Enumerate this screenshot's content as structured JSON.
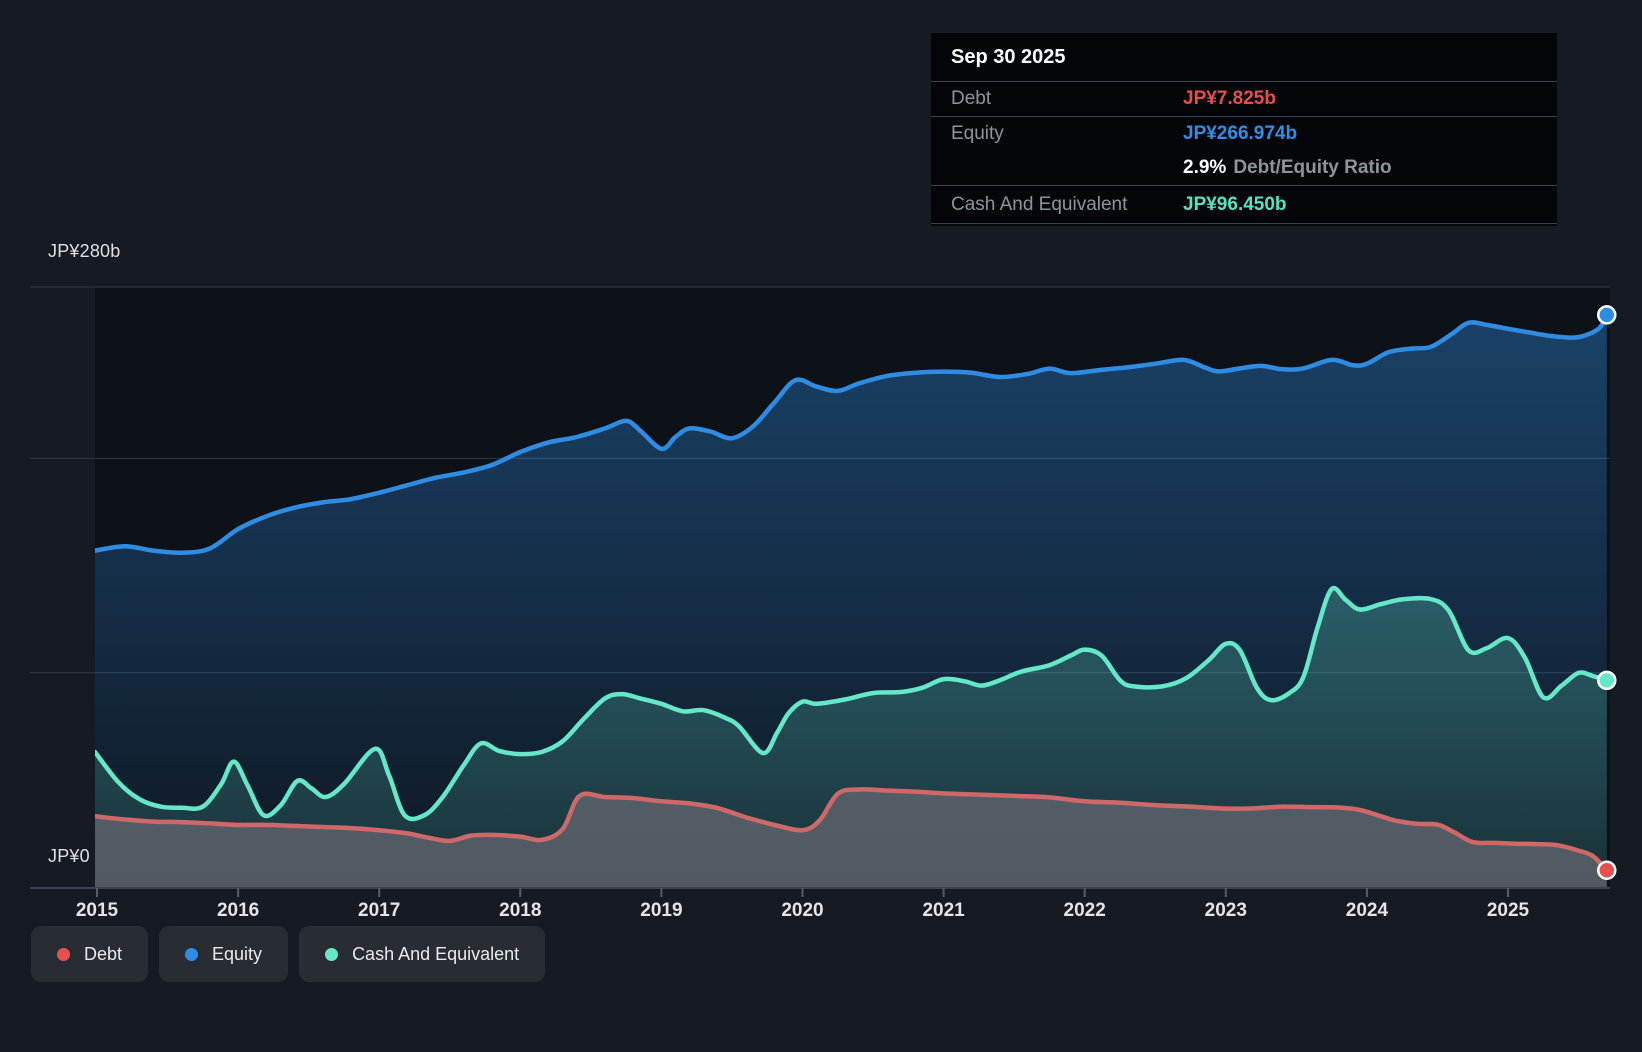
{
  "y_axis": {
    "top_label": "JP¥280b",
    "zero_label": "JP¥0"
  },
  "tooltip": {
    "date": "Sep 30 2025",
    "debt_label": "Debt",
    "debt_value": "JP¥7.825b",
    "debt_color": "#ea4d50",
    "equity_label": "Equity",
    "equity_value": "JP¥266.974b",
    "equity_color": "#2f8fe8",
    "ratio_value": "2.9%",
    "ratio_label": "Debt/Equity Ratio",
    "cash_label": "Cash And Equivalent",
    "cash_value": "JP¥96.450b",
    "cash_color": "#55e4c0"
  },
  "legend": {
    "items": [
      {
        "label": "Debt",
        "color": "#e8504d"
      },
      {
        "label": "Equity",
        "color": "#2e8de3"
      },
      {
        "label": "Cash And Equivalent",
        "color": "#64e8c8"
      }
    ]
  },
  "chart_data": {
    "type": "area",
    "unit": "JP¥ billions",
    "title": "",
    "x_ticks": [
      "2015",
      "2016",
      "2017",
      "2018",
      "2019",
      "2020",
      "2021",
      "2022",
      "2023",
      "2024",
      "2025"
    ],
    "ylim": [
      0,
      280
    ],
    "gridline_values": [
      280,
      200,
      100
    ],
    "y_axis_labels": {
      "top": "JP¥280b",
      "zero": "JP¥0"
    },
    "last_point_date": "Sep 30 2025",
    "series": [
      {
        "name": "Equity",
        "line_color": "#2e8de3",
        "dot_color": "#2e8de3",
        "fill_top": "rgba(47,143,232,0.40)",
        "fill_bottom": "rgba(47,143,232,0.05)",
        "points": [
          [
            2014.986,
            157
          ],
          [
            2015.2,
            159
          ],
          [
            2015.4,
            157
          ],
          [
            2015.6,
            156
          ],
          [
            2015.8,
            158
          ],
          [
            2016.0,
            167
          ],
          [
            2016.2,
            173
          ],
          [
            2016.4,
            177
          ],
          [
            2016.6,
            179.5
          ],
          [
            2016.8,
            181
          ],
          [
            2017.0,
            184
          ],
          [
            2017.2,
            187.5
          ],
          [
            2017.4,
            191
          ],
          [
            2017.6,
            193.5
          ],
          [
            2017.8,
            197
          ],
          [
            2018.0,
            203
          ],
          [
            2018.2,
            207.5
          ],
          [
            2018.4,
            210
          ],
          [
            2018.6,
            214
          ],
          [
            2018.75,
            217.5
          ],
          [
            2018.85,
            213
          ],
          [
            2019.0,
            204.5
          ],
          [
            2019.1,
            210
          ],
          [
            2019.2,
            214
          ],
          [
            2019.35,
            212.5
          ],
          [
            2019.5,
            209.5
          ],
          [
            2019.65,
            215
          ],
          [
            2019.8,
            226
          ],
          [
            2019.95,
            236.5
          ],
          [
            2020.1,
            233.5
          ],
          [
            2020.25,
            231.5
          ],
          [
            2020.4,
            235
          ],
          [
            2020.6,
            238.5
          ],
          [
            2020.8,
            240
          ],
          [
            2021.0,
            240.5
          ],
          [
            2021.2,
            240
          ],
          [
            2021.4,
            238
          ],
          [
            2021.6,
            239.5
          ],
          [
            2021.75,
            241.9
          ],
          [
            2021.9,
            239.8
          ],
          [
            2022.1,
            241.2
          ],
          [
            2022.3,
            242.5
          ],
          [
            2022.5,
            244.2
          ],
          [
            2022.7,
            246
          ],
          [
            2022.85,
            242.5
          ],
          [
            2022.95,
            240.6
          ],
          [
            2023.1,
            242
          ],
          [
            2023.25,
            243.2
          ],
          [
            2023.4,
            241.6
          ],
          [
            2023.55,
            242
          ],
          [
            2023.75,
            246
          ],
          [
            2023.9,
            243.5
          ],
          [
            2024.0,
            244.2
          ],
          [
            2024.15,
            249.5
          ],
          [
            2024.3,
            251.2
          ],
          [
            2024.45,
            252
          ],
          [
            2024.6,
            258
          ],
          [
            2024.72,
            263.3
          ],
          [
            2024.85,
            262.3
          ],
          [
            2025.0,
            260.5
          ],
          [
            2025.15,
            258.8
          ],
          [
            2025.3,
            257.2
          ],
          [
            2025.45,
            256.4
          ],
          [
            2025.55,
            257.5
          ],
          [
            2025.65,
            261
          ],
          [
            2025.7,
            266.974
          ]
        ]
      },
      {
        "name": "Cash And Equivalent",
        "line_color": "#64e8c8",
        "dot_color": "#64e8c8",
        "fill_top": "rgba(100,232,200,0.40)",
        "fill_bottom": "rgba(100,232,200,0.12)",
        "points": [
          [
            2014.986,
            63
          ],
          [
            2015.15,
            49
          ],
          [
            2015.3,
            41
          ],
          [
            2015.45,
            37.5
          ],
          [
            2015.6,
            37
          ],
          [
            2015.75,
            37.5
          ],
          [
            2015.88,
            48
          ],
          [
            2015.97,
            58.5
          ],
          [
            2016.07,
            47
          ],
          [
            2016.18,
            33.5
          ],
          [
            2016.3,
            38
          ],
          [
            2016.42,
            49.5
          ],
          [
            2016.52,
            46
          ],
          [
            2016.62,
            42
          ],
          [
            2016.75,
            48
          ],
          [
            2016.97,
            64.5
          ],
          [
            2017.07,
            52
          ],
          [
            2017.18,
            33.5
          ],
          [
            2017.32,
            33.5
          ],
          [
            2017.45,
            42
          ],
          [
            2017.6,
            57
          ],
          [
            2017.72,
            67
          ],
          [
            2017.85,
            63.5
          ],
          [
            2018.0,
            62
          ],
          [
            2018.15,
            63
          ],
          [
            2018.3,
            68
          ],
          [
            2018.45,
            78.5
          ],
          [
            2018.6,
            88
          ],
          [
            2018.72,
            90
          ],
          [
            2018.85,
            88
          ],
          [
            2019.0,
            85.5
          ],
          [
            2019.15,
            82
          ],
          [
            2019.3,
            82.5
          ],
          [
            2019.45,
            79
          ],
          [
            2019.55,
            75
          ],
          [
            2019.72,
            62.5
          ],
          [
            2019.82,
            72
          ],
          [
            2019.9,
            81
          ],
          [
            2020.0,
            86.5
          ],
          [
            2020.1,
            85.5
          ],
          [
            2020.3,
            87.5
          ],
          [
            2020.5,
            90.5
          ],
          [
            2020.7,
            91
          ],
          [
            2020.85,
            93
          ],
          [
            2021.0,
            97
          ],
          [
            2021.15,
            96
          ],
          [
            2021.27,
            94
          ],
          [
            2021.4,
            96.5
          ],
          [
            2021.55,
            100.5
          ],
          [
            2021.75,
            103.5
          ],
          [
            2021.9,
            108
          ],
          [
            2022.0,
            110.8
          ],
          [
            2022.12,
            108
          ],
          [
            2022.25,
            96.5
          ],
          [
            2022.35,
            93.6
          ],
          [
            2022.55,
            93.6
          ],
          [
            2022.72,
            97.5
          ],
          [
            2022.88,
            106
          ],
          [
            2023.0,
            113.5
          ],
          [
            2023.1,
            110.5
          ],
          [
            2023.22,
            93
          ],
          [
            2023.32,
            87.2
          ],
          [
            2023.45,
            90.5
          ],
          [
            2023.55,
            98
          ],
          [
            2023.65,
            121
          ],
          [
            2023.75,
            139
          ],
          [
            2023.85,
            134
          ],
          [
            2023.95,
            129.5
          ],
          [
            2024.1,
            132
          ],
          [
            2024.25,
            134.2
          ],
          [
            2024.45,
            134.4
          ],
          [
            2024.58,
            129
          ],
          [
            2024.72,
            110.5
          ],
          [
            2024.85,
            111.5
          ],
          [
            2025.0,
            116.2
          ],
          [
            2025.12,
            107
          ],
          [
            2025.25,
            88.5
          ],
          [
            2025.38,
            94
          ],
          [
            2025.5,
            99.9
          ],
          [
            2025.6,
            98.5
          ],
          [
            2025.7,
            96.45
          ]
        ]
      },
      {
        "name": "Debt",
        "line_color": "#cf6868",
        "dot_color": "#e8504d",
        "fill_top": "rgba(122,120,132,0.55)",
        "fill_bottom": "rgba(108,107,117,0.68)",
        "points": [
          [
            2014.986,
            33
          ],
          [
            2015.2,
            31.5
          ],
          [
            2015.4,
            30.5
          ],
          [
            2015.6,
            30.3
          ],
          [
            2015.8,
            29.7
          ],
          [
            2016.0,
            29
          ],
          [
            2016.2,
            29
          ],
          [
            2016.4,
            28.5
          ],
          [
            2016.6,
            28
          ],
          [
            2016.8,
            27.5
          ],
          [
            2017.0,
            26.5
          ],
          [
            2017.2,
            25
          ],
          [
            2017.35,
            23
          ],
          [
            2017.5,
            21.5
          ],
          [
            2017.65,
            24
          ],
          [
            2017.8,
            24.3
          ],
          [
            2018.0,
            23.5
          ],
          [
            2018.15,
            22
          ],
          [
            2018.3,
            27
          ],
          [
            2018.42,
            42.5
          ],
          [
            2018.6,
            42
          ],
          [
            2018.8,
            41.5
          ],
          [
            2019.0,
            40
          ],
          [
            2019.2,
            39
          ],
          [
            2019.4,
            36.8
          ],
          [
            2019.6,
            32.5
          ],
          [
            2019.8,
            29
          ],
          [
            2020.0,
            26.5
          ],
          [
            2020.12,
            31
          ],
          [
            2020.25,
            43.5
          ],
          [
            2020.4,
            45.5
          ],
          [
            2020.6,
            45
          ],
          [
            2020.8,
            44.5
          ],
          [
            2021.0,
            43.7
          ],
          [
            2021.25,
            43.1
          ],
          [
            2021.5,
            42.5
          ],
          [
            2021.75,
            41.8
          ],
          [
            2022.0,
            40
          ],
          [
            2022.25,
            39.3
          ],
          [
            2022.5,
            38.2
          ],
          [
            2022.75,
            37.5
          ],
          [
            2023.0,
            36.6
          ],
          [
            2023.2,
            36.7
          ],
          [
            2023.4,
            37.5
          ],
          [
            2023.6,
            37.3
          ],
          [
            2023.8,
            37.1
          ],
          [
            2023.95,
            36
          ],
          [
            2024.1,
            33
          ],
          [
            2024.2,
            31
          ],
          [
            2024.35,
            29.5
          ],
          [
            2024.5,
            29.1
          ],
          [
            2024.62,
            25.5
          ],
          [
            2024.75,
            21
          ],
          [
            2024.9,
            20.6
          ],
          [
            2025.05,
            20.2
          ],
          [
            2025.2,
            20
          ],
          [
            2025.35,
            19.5
          ],
          [
            2025.5,
            17
          ],
          [
            2025.6,
            14.5
          ],
          [
            2025.7,
            7.825
          ]
        ]
      }
    ]
  }
}
